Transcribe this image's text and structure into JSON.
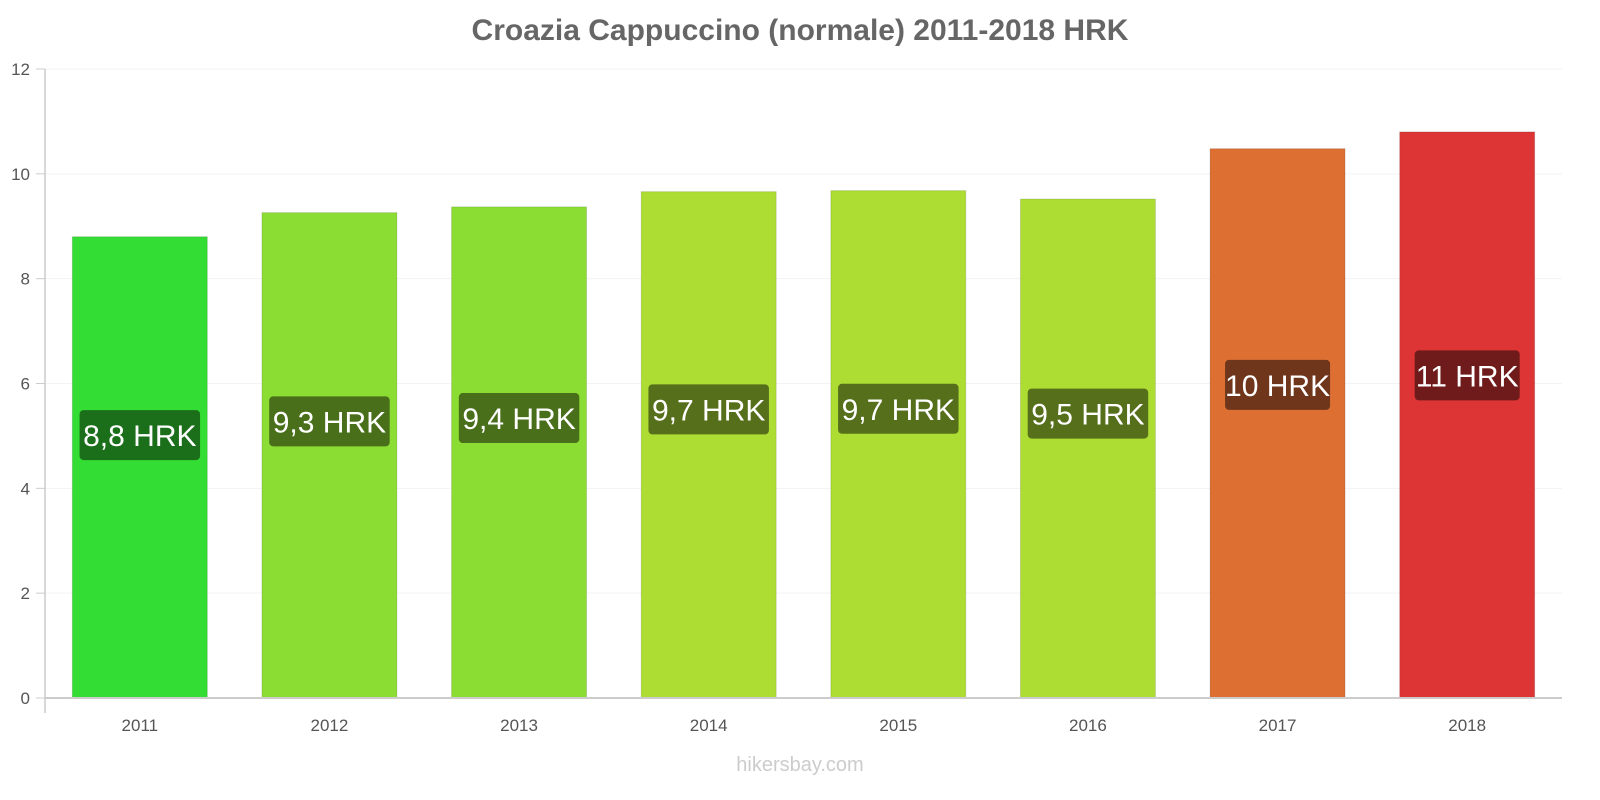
{
  "chart_data": {
    "type": "bar",
    "title": "Croazia Cappuccino (normale) 2011-2018 HRK",
    "xlabel": "",
    "ylabel": "",
    "ylim": [
      0,
      12
    ],
    "yticks": [
      0,
      2,
      4,
      6,
      8,
      10,
      12
    ],
    "grid": true,
    "legend": null,
    "categories": [
      "2011",
      "2012",
      "2013",
      "2014",
      "2015",
      "2016",
      "2017",
      "2018"
    ],
    "values": [
      8.8,
      9.26,
      9.37,
      9.66,
      9.68,
      9.52,
      10.48,
      10.8
    ],
    "data_labels": [
      "8,8 HRK",
      "9,3 HRK",
      "9,4 HRK",
      "9,7 HRK",
      "9,7 HRK",
      "9,5 HRK",
      "10 HRK",
      "11 HRK"
    ],
    "bar_colors": [
      "#33dd33",
      "#8cdd33",
      "#8cdd33",
      "#addd33",
      "#addd33",
      "#addd33",
      "#dd6f33",
      "#dd3535"
    ],
    "label_bg_colors": [
      "#1b6f1b",
      "#4a6f1b",
      "#4a6f1b",
      "#566f1b",
      "#566f1b",
      "#566f1b",
      "#6f361b",
      "#6f1b1b"
    ]
  },
  "watermark": "hikersbay.com"
}
